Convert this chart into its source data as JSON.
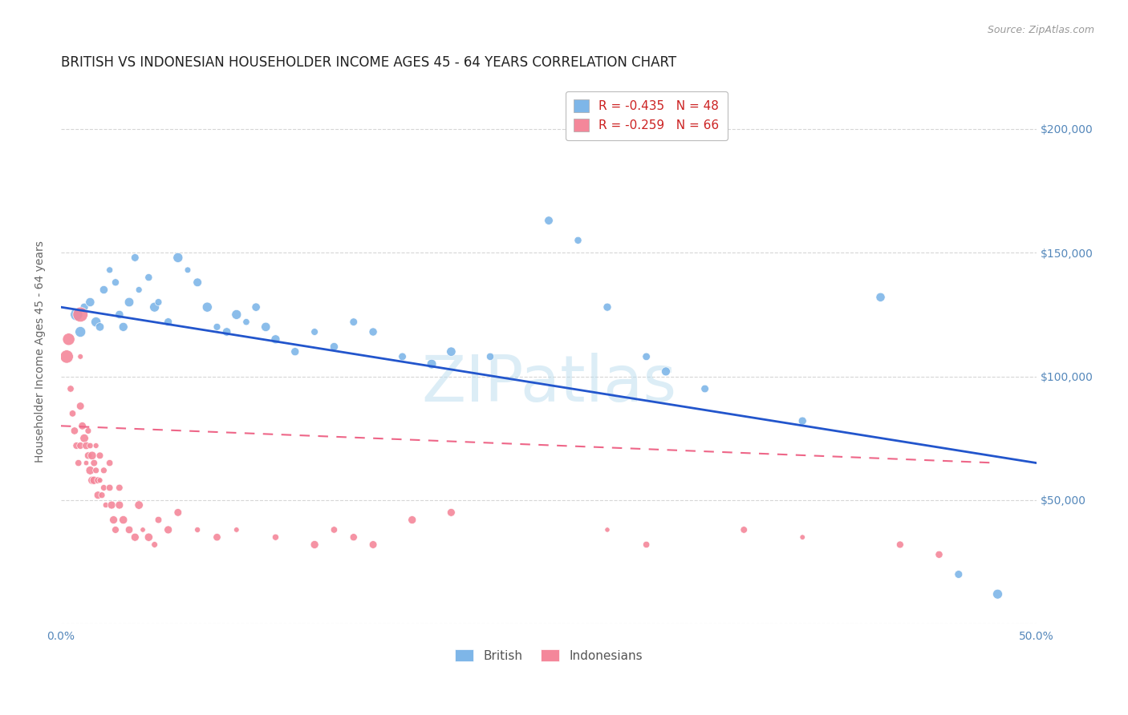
{
  "title": "BRITISH VS INDONESIAN HOUSEHOLDER INCOME AGES 45 - 64 YEARS CORRELATION CHART",
  "source": "Source: ZipAtlas.com",
  "ylabel": "Householder Income Ages 45 - 64 years",
  "watermark": "ZIPatlas",
  "xlim": [
    0.0,
    0.5
  ],
  "ylim": [
    0,
    220000
  ],
  "yticks": [
    0,
    50000,
    100000,
    150000,
    200000
  ],
  "ytick_labels_right": [
    "",
    "$50,000",
    "$100,000",
    "$150,000",
    "$200,000"
  ],
  "xticks": [
    0.0,
    0.1,
    0.2,
    0.3,
    0.4,
    0.5
  ],
  "xtick_labels": [
    "0.0%",
    "",
    "",
    "",
    "",
    "50.0%"
  ],
  "legend_blue_r": "R = -0.435",
  "legend_blue_n": "N = 48",
  "legend_pink_r": "R = -0.259",
  "legend_pink_n": "N = 66",
  "british_color": "#7EB6E8",
  "indonesian_color": "#F4879A",
  "line_blue": "#2255CC",
  "line_pink": "#EE6688",
  "british_scatter": [
    [
      0.008,
      125000
    ],
    [
      0.01,
      118000
    ],
    [
      0.012,
      128000
    ],
    [
      0.015,
      130000
    ],
    [
      0.018,
      122000
    ],
    [
      0.02,
      120000
    ],
    [
      0.022,
      135000
    ],
    [
      0.025,
      143000
    ],
    [
      0.028,
      138000
    ],
    [
      0.03,
      125000
    ],
    [
      0.032,
      120000
    ],
    [
      0.035,
      130000
    ],
    [
      0.038,
      148000
    ],
    [
      0.04,
      135000
    ],
    [
      0.045,
      140000
    ],
    [
      0.048,
      128000
    ],
    [
      0.05,
      130000
    ],
    [
      0.055,
      122000
    ],
    [
      0.06,
      148000
    ],
    [
      0.065,
      143000
    ],
    [
      0.07,
      138000
    ],
    [
      0.075,
      128000
    ],
    [
      0.08,
      120000
    ],
    [
      0.085,
      118000
    ],
    [
      0.09,
      125000
    ],
    [
      0.095,
      122000
    ],
    [
      0.1,
      128000
    ],
    [
      0.105,
      120000
    ],
    [
      0.11,
      115000
    ],
    [
      0.12,
      110000
    ],
    [
      0.13,
      118000
    ],
    [
      0.14,
      112000
    ],
    [
      0.15,
      122000
    ],
    [
      0.16,
      118000
    ],
    [
      0.175,
      108000
    ],
    [
      0.19,
      105000
    ],
    [
      0.2,
      110000
    ],
    [
      0.22,
      108000
    ],
    [
      0.25,
      163000
    ],
    [
      0.265,
      155000
    ],
    [
      0.28,
      128000
    ],
    [
      0.3,
      108000
    ],
    [
      0.31,
      102000
    ],
    [
      0.33,
      95000
    ],
    [
      0.38,
      82000
    ],
    [
      0.42,
      132000
    ],
    [
      0.46,
      20000
    ],
    [
      0.48,
      12000
    ]
  ],
  "indonesian_scatter": [
    [
      0.003,
      108000
    ],
    [
      0.004,
      115000
    ],
    [
      0.005,
      95000
    ],
    [
      0.006,
      85000
    ],
    [
      0.007,
      78000
    ],
    [
      0.008,
      72000
    ],
    [
      0.009,
      65000
    ],
    [
      0.01,
      125000
    ],
    [
      0.01,
      108000
    ],
    [
      0.01,
      88000
    ],
    [
      0.01,
      72000
    ],
    [
      0.011,
      80000
    ],
    [
      0.012,
      75000
    ],
    [
      0.013,
      72000
    ],
    [
      0.013,
      65000
    ],
    [
      0.014,
      78000
    ],
    [
      0.014,
      68000
    ],
    [
      0.015,
      72000
    ],
    [
      0.015,
      62000
    ],
    [
      0.016,
      68000
    ],
    [
      0.016,
      58000
    ],
    [
      0.017,
      65000
    ],
    [
      0.017,
      58000
    ],
    [
      0.018,
      72000
    ],
    [
      0.018,
      62000
    ],
    [
      0.019,
      58000
    ],
    [
      0.019,
      52000
    ],
    [
      0.02,
      68000
    ],
    [
      0.02,
      58000
    ],
    [
      0.021,
      52000
    ],
    [
      0.022,
      62000
    ],
    [
      0.022,
      55000
    ],
    [
      0.023,
      48000
    ],
    [
      0.025,
      65000
    ],
    [
      0.025,
      55000
    ],
    [
      0.026,
      48000
    ],
    [
      0.027,
      42000
    ],
    [
      0.028,
      38000
    ],
    [
      0.03,
      55000
    ],
    [
      0.03,
      48000
    ],
    [
      0.032,
      42000
    ],
    [
      0.035,
      38000
    ],
    [
      0.038,
      35000
    ],
    [
      0.04,
      48000
    ],
    [
      0.042,
      38000
    ],
    [
      0.045,
      35000
    ],
    [
      0.048,
      32000
    ],
    [
      0.05,
      42000
    ],
    [
      0.055,
      38000
    ],
    [
      0.06,
      45000
    ],
    [
      0.07,
      38000
    ],
    [
      0.08,
      35000
    ],
    [
      0.09,
      38000
    ],
    [
      0.11,
      35000
    ],
    [
      0.13,
      32000
    ],
    [
      0.14,
      38000
    ],
    [
      0.15,
      35000
    ],
    [
      0.16,
      32000
    ],
    [
      0.18,
      42000
    ],
    [
      0.2,
      45000
    ],
    [
      0.28,
      38000
    ],
    [
      0.3,
      32000
    ],
    [
      0.35,
      38000
    ],
    [
      0.38,
      35000
    ],
    [
      0.43,
      32000
    ],
    [
      0.45,
      28000
    ]
  ],
  "blue_line_x": [
    0.0,
    0.5
  ],
  "blue_line_y": [
    128000,
    65000
  ],
  "pink_line_x": [
    0.0,
    0.48
  ],
  "pink_line_y": [
    80000,
    65000
  ],
  "background_color": "#FFFFFF",
  "grid_color": "#CCCCCC",
  "tick_color": "#5588BB",
  "title_color": "#222222",
  "source_color": "#999999",
  "ylabel_color": "#666666",
  "title_fontsize": 12,
  "tick_fontsize": 10,
  "label_fontsize": 10
}
